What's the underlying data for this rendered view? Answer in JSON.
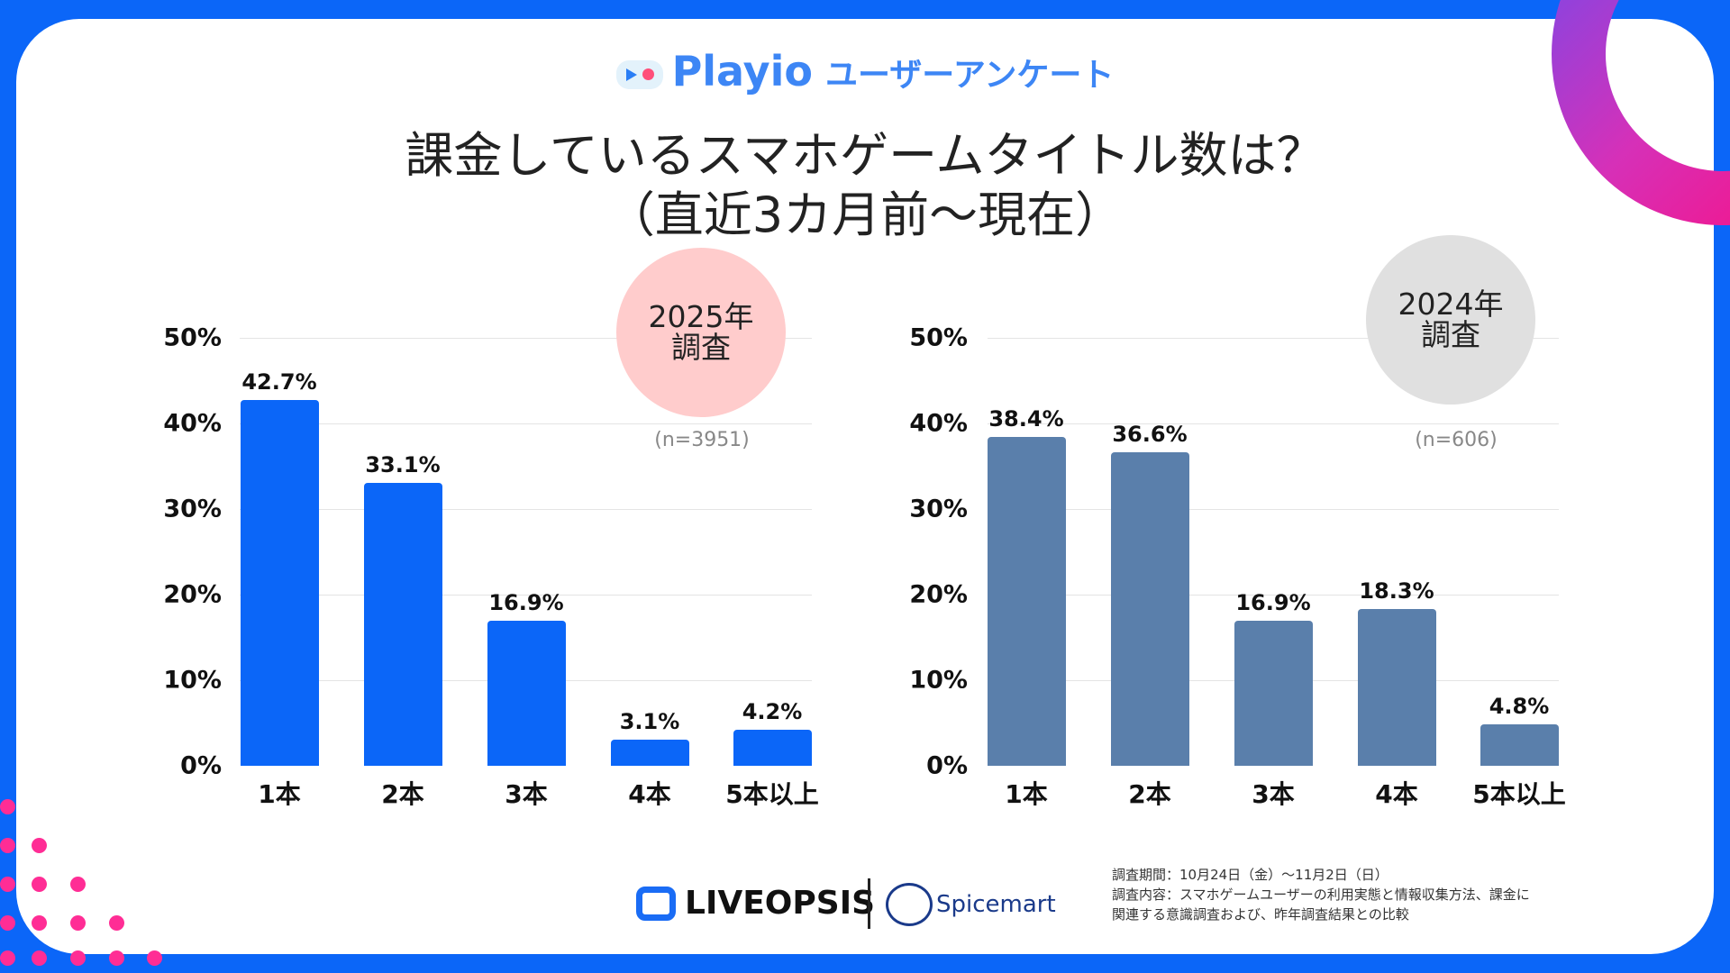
{
  "header": {
    "brand": "Playio",
    "subtitle": "ユーザーアンケート",
    "title_line1": "課金しているスマホゲームタイトル数は？",
    "title_line2": "（直近3カ月前〜現在）"
  },
  "chart_data": [
    {
      "type": "bar",
      "badge": "2025年\n調査",
      "badge_line1": "2025年",
      "badge_line2": "調査",
      "sample": "(n=3951)",
      "categories": [
        "1本",
        "2本",
        "3本",
        "4本",
        "5本以上"
      ],
      "values": [
        42.7,
        33.1,
        16.9,
        3.1,
        4.2
      ],
      "value_labels": [
        "42.7%",
        "33.1%",
        "16.9%",
        "3.1%",
        "4.2%"
      ],
      "ylim": [
        0,
        50
      ],
      "yticks": [
        "0%",
        "10%",
        "20%",
        "30%",
        "40%",
        "50%"
      ],
      "grid": true,
      "color": "#0b66f8"
    },
    {
      "type": "bar",
      "badge_line1": "2024年",
      "badge_line2": "調査",
      "sample": "(n=606)",
      "categories": [
        "1本",
        "2本",
        "3本",
        "4本",
        "5本以上"
      ],
      "values": [
        38.4,
        36.6,
        16.9,
        18.3,
        4.8
      ],
      "value_labels": [
        "38.4%",
        "36.6%",
        "16.9%",
        "18.3%",
        "4.8%"
      ],
      "ylim": [
        0,
        50
      ],
      "yticks": [
        "0%",
        "10%",
        "20%",
        "30%",
        "40%",
        "50%"
      ],
      "grid": true,
      "color": "#5a7fab"
    }
  ],
  "footer": {
    "logo1": "LIVEOPSIS",
    "logo2": "Spicemart",
    "period": "調査期間：10月24日（金）〜11月2日（日）",
    "content1": "調査内容：スマホゲームユーザーの利用実態と情報収集方法、課金に",
    "content2": "関連する意識調査および、昨年調査結果との比較"
  }
}
